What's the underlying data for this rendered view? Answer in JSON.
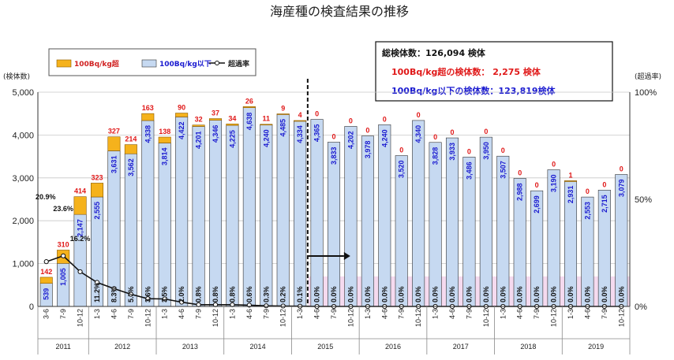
{
  "chart_data": {
    "type": "bar",
    "title": "海産種の検査結果の推移",
    "ylabel_left": "(検体数)",
    "ylabel_right": "(超過率)",
    "ylim": [
      0,
      5000
    ],
    "yticks": [
      "0",
      "1,000",
      "2,000",
      "3,000",
      "4,000",
      "5,000"
    ],
    "y2lim": [
      0,
      100
    ],
    "y2ticks": [
      "0%",
      "50%",
      "100%"
    ],
    "legend": {
      "over": "100Bq/kg超",
      "under": "100Bq/kg以下",
      "rate": "超過率"
    },
    "summary": {
      "total": "総検体数：126,094 検体",
      "over": "100Bq/kg超の検体数：  2,275 検体",
      "under": "100Bq/kg以下の検体数：123,819検体"
    },
    "categories": [
      "3-6",
      "7-9",
      "10-12",
      "1-3",
      "4-6",
      "7-9",
      "10-12",
      "1-3",
      "4-6",
      "7-9",
      "10-12",
      "1-3",
      "4-6",
      "7-9",
      "10-12",
      "1-3",
      "4-6",
      "7-9",
      "10-12",
      "1-3",
      "4-6",
      "7-9",
      "10-12",
      "1-3",
      "4-6",
      "7-9",
      "10-12",
      "1-3",
      "4-6",
      "7-9",
      "10-12",
      "1-3",
      "4-6",
      "7-9",
      "10-12"
    ],
    "years": [
      {
        "label": "2011",
        "start": 0,
        "count": 3
      },
      {
        "label": "2012",
        "start": 3,
        "count": 4
      },
      {
        "label": "2013",
        "start": 7,
        "count": 4
      },
      {
        "label": "2014",
        "start": 11,
        "count": 4
      },
      {
        "label": "2015",
        "start": 15,
        "count": 4
      },
      {
        "label": "2016",
        "start": 19,
        "count": 4
      },
      {
        "label": "2017",
        "start": 23,
        "count": 4
      },
      {
        "label": "2018",
        "start": 27,
        "count": 4
      },
      {
        "label": "2019",
        "start": 31,
        "count": 4
      }
    ],
    "series": [
      {
        "name": "100Bq/kg以下",
        "values": [
          539,
          1005,
          2147,
          2555,
          3631,
          3562,
          4338,
          3814,
          4422,
          4201,
          4346,
          4225,
          4638,
          4240,
          4485,
          4334,
          4365,
          3833,
          4202,
          3978,
          4240,
          3520,
          4340,
          3828,
          3933,
          3486,
          3950,
          3507,
          2988,
          2699,
          3190,
          2931,
          2553,
          2715,
          3079
        ],
        "labels": [
          "539",
          "1,005",
          "2,147",
          "2,555",
          "3,631",
          "3,562",
          "4,338",
          "3,814",
          "4,422",
          "4,201",
          "4,346",
          "4,225",
          "4,638",
          "4,240",
          "4,485",
          "4,334",
          "4,365",
          "3,833",
          "4,202",
          "3,978",
          "4,240",
          "3,520",
          "4,340",
          "3,828",
          "3,933",
          "3,486",
          "3,950",
          "3,507",
          "2,988",
          "2,699",
          "3,190",
          "2,931",
          "2,553",
          "2,715",
          "3,079"
        ]
      },
      {
        "name": "100Bq/kg超",
        "values": [
          142,
          310,
          414,
          323,
          327,
          214,
          163,
          138,
          90,
          32,
          37,
          34,
          26,
          11,
          9,
          4,
          0,
          0,
          0,
          0,
          0,
          0,
          0,
          0,
          0,
          0,
          0,
          0,
          0,
          0,
          0,
          1,
          0,
          0,
          0
        ],
        "labels": [
          "142",
          "310",
          "414",
          "323",
          "327",
          "214",
          "163",
          "138",
          "90",
          "32",
          "37",
          "34",
          "26",
          "11",
          "9",
          "4",
          "0",
          "0",
          "0",
          "0",
          "0",
          "0",
          "0",
          "0",
          "0",
          "0",
          "0",
          "0",
          "0",
          "0",
          "0",
          "1",
          "0",
          "0",
          "0"
        ]
      },
      {
        "name": "超過率",
        "values": [
          20.9,
          23.6,
          16.2,
          11.2,
          8.3,
          5.7,
          3.6,
          3.5,
          2.0,
          0.8,
          0.8,
          0.8,
          0.6,
          0.3,
          0.2,
          0.1,
          0,
          0,
          0,
          0,
          0,
          0,
          0,
          0,
          0,
          0,
          0,
          0,
          0,
          0,
          0,
          0,
          0,
          0,
          0
        ],
        "labels": [
          "20.9%",
          "23.6%",
          "16.2%",
          "11.2%",
          "8.3%",
          "5.7%",
          "3.6%",
          "3.5%",
          "2.0%",
          "0.8%",
          "0.8%",
          "0.8%",
          "0.6%",
          "0.3%",
          "0.2%",
          "0.1%",
          "0.0%",
          "0.0%",
          "0.0%",
          "0.0%",
          "0.0%",
          "0.0%",
          "0.0%",
          "0.0%",
          "0.0%",
          "0.0%",
          "0.0%",
          "0.0%",
          "0.0%",
          "0.0%",
          "0.0%",
          "0.0%",
          "0.0%",
          "0.0%",
          "0.0%"
        ]
      }
    ],
    "colors": {
      "over": "#f5b21c",
      "under": "#c6d9f1",
      "rate": "#111111",
      "over_label": "#e01818",
      "under_label": "#1a1ad0",
      "band": "#f2cdea"
    }
  }
}
